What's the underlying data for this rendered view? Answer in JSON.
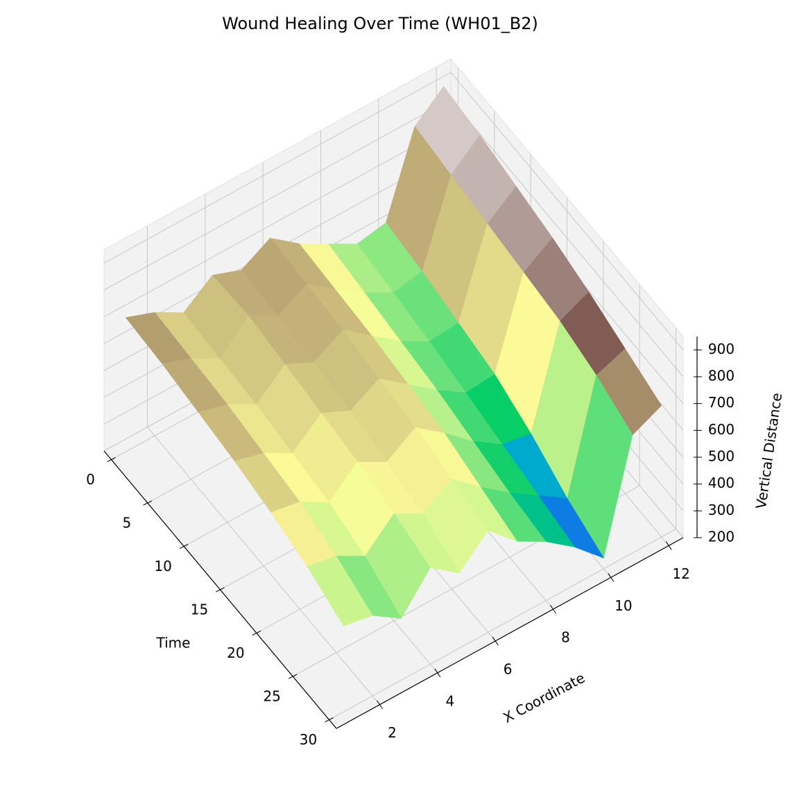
{
  "chart_data": {
    "type": "surface3d",
    "title": "Wound Healing Over Time (WH01_B2)",
    "x_label": "X Coordinate",
    "t_label": "Time",
    "z_label": "Vertical Distance",
    "x": [
      1,
      2,
      3,
      4,
      5,
      6,
      7,
      8,
      9,
      10,
      11,
      12
    ],
    "time": [
      0,
      5,
      10,
      15,
      20,
      25,
      30
    ],
    "z": [
      [
        700,
        660,
        600,
        680,
        640,
        700,
        620,
        560,
        500,
        520,
        820,
        910
      ],
      [
        690,
        650,
        590,
        690,
        630,
        690,
        610,
        540,
        480,
        500,
        800,
        890
      ],
      [
        670,
        640,
        580,
        670,
        620,
        680,
        600,
        520,
        460,
        470,
        780,
        860
      ],
      [
        650,
        620,
        560,
        650,
        600,
        660,
        580,
        500,
        430,
        440,
        760,
        830
      ],
      [
        620,
        600,
        540,
        630,
        570,
        640,
        560,
        470,
        400,
        380,
        740,
        790
      ],
      [
        580,
        560,
        500,
        600,
        540,
        610,
        520,
        440,
        370,
        300,
        700,
        740
      ],
      [
        520,
        500,
        430,
        560,
        480,
        580,
        480,
        420,
        340,
        240,
        640,
        690
      ]
    ],
    "colormap": "terrain",
    "xlim": [
      0.5,
      12.5
    ],
    "xticks": [
      2,
      4,
      6,
      8,
      10,
      12
    ],
    "tlim": [
      -1,
      31
    ],
    "tticks": [
      0,
      5,
      10,
      15,
      20,
      25,
      30
    ],
    "zlim": [
      200,
      950
    ],
    "zticks": [
      200,
      300,
      400,
      500,
      600,
      700,
      800,
      900
    ],
    "grid": true
  }
}
